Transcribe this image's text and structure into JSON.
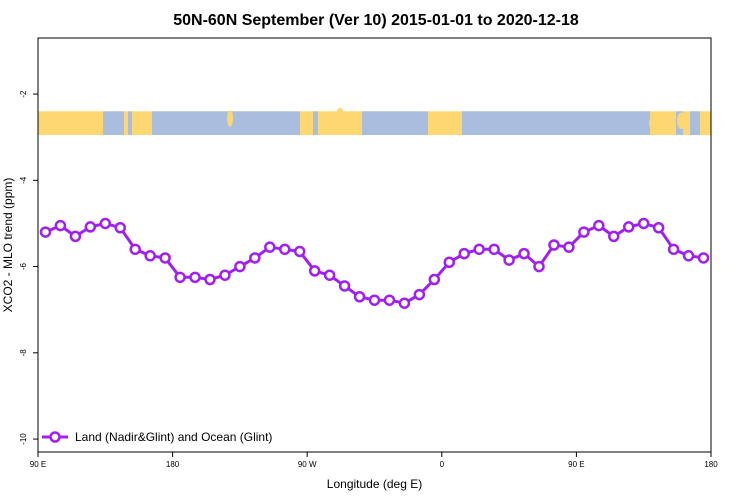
{
  "chart_data": {
    "type": "line",
    "title": "50N-60N September (Ver 10)   2015-01-01 to 2020-12-18",
    "xlabel": "Longitude (deg E)",
    "ylabel": "XCO2 - MLO trend (ppm)",
    "x_ticks": [
      {
        "value": 90,
        "label": "90 E"
      },
      {
        "value": 180,
        "label": "180"
      },
      {
        "value": 270,
        "label": "90 W"
      },
      {
        "value": 360,
        "label": "0"
      },
      {
        "value": 450,
        "label": "90 E"
      },
      {
        "value": 540,
        "label": "180"
      }
    ],
    "y_ticks": [
      {
        "value": -2,
        "label": "-2"
      },
      {
        "value": -4,
        "label": "-4"
      },
      {
        "value": -6,
        "label": "-6"
      },
      {
        "value": -8,
        "label": "-8"
      },
      {
        "value": -10,
        "label": "-10"
      }
    ],
    "xlim": [
      90,
      540
    ],
    "ylim": [
      -10.3,
      -0.7
    ],
    "grid": false,
    "legend_position": "bottom-left",
    "map_band": {
      "y_top": -2.4,
      "y_bottom": -2.95,
      "land_color": "#fdd872",
      "ocean_color": "#a9bedf"
    },
    "series": [
      {
        "name": "Land (Nadir&Glint) and Ocean (Glint)",
        "color": "#a020f0",
        "x": [
          95,
          105,
          115,
          125,
          135,
          145,
          155,
          165,
          175,
          185,
          195,
          205,
          215,
          225,
          235,
          245,
          255,
          265,
          275,
          285,
          295,
          305,
          315,
          325,
          335,
          345,
          355,
          365,
          375,
          385,
          395,
          405,
          415,
          425,
          435,
          445,
          455,
          465,
          475,
          485,
          495,
          505,
          515,
          525,
          535
        ],
        "y": [
          -5.2,
          -5.05,
          -5.3,
          -5.08,
          -5.0,
          -5.1,
          -5.6,
          -5.75,
          -5.8,
          -6.25,
          -6.25,
          -6.3,
          -6.2,
          -6.0,
          -5.8,
          -5.55,
          -5.6,
          -5.65,
          -6.1,
          -6.2,
          -6.45,
          -6.7,
          -6.78,
          -6.78,
          -6.85,
          -6.65,
          -6.3,
          -5.9,
          -5.7,
          -5.6,
          -5.6,
          -5.85,
          -5.7,
          -6.0,
          -5.5,
          -5.55,
          -5.2,
          -5.05,
          -5.3,
          -5.08,
          -5.0,
          -5.1,
          -5.6,
          -5.75,
          -5.8
        ]
      }
    ]
  }
}
